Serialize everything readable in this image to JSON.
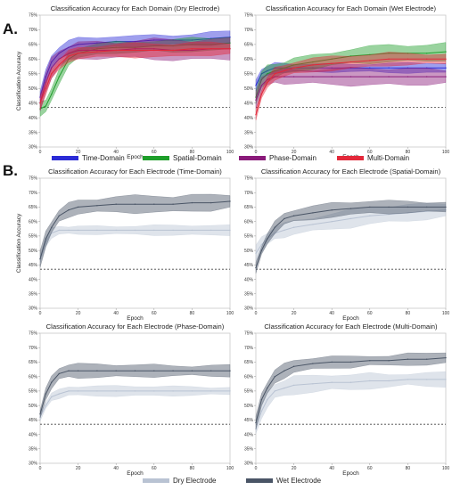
{
  "panel_labels": [
    "A.",
    "B."
  ],
  "colors": {
    "time": "#2b2bd6",
    "spatial": "#1e9e2a",
    "phase": "#8a1a7a",
    "multi": "#e3283a",
    "dry": "#b9c3d3",
    "wet": "#4a5566"
  },
  "legendA": [
    {
      "label": "Time-Domain",
      "color": "#2b2bd6"
    },
    {
      "label": "Spatial-Domain",
      "color": "#1e9e2a"
    },
    {
      "label": "Phase-Domain",
      "color": "#8a1a7a"
    },
    {
      "label": "Multi-Domain",
      "color": "#e3283a"
    }
  ],
  "legendB": [
    {
      "label": "Dry Electrode",
      "color": "#b9c3d3"
    },
    {
      "label": "Wet Electrode",
      "color": "#4a5566"
    }
  ],
  "chart_data": [
    {
      "type": "line",
      "title": "Classification Accuracy for Each Domain (Dry Electrode)",
      "xlabel": "Epoch",
      "ylabel": "Classification Accuracy",
      "xlim": [
        0,
        100
      ],
      "ylim": [
        30,
        75
      ],
      "xticks": [
        0,
        20,
        40,
        60,
        80,
        100
      ],
      "yticks": [
        "30%",
        "35%",
        "40%",
        "45%",
        "50%",
        "55%",
        "60%",
        "65%",
        "70%",
        "75%"
      ],
      "baseline": 43.5,
      "grid": false,
      "series": [
        {
          "name": "Time-Domain",
          "color": "#2b2bd6",
          "x": [
            0,
            3,
            6,
            10,
            15,
            20,
            30,
            40,
            50,
            60,
            70,
            80,
            90,
            100
          ],
          "y": [
            47,
            54,
            59,
            62,
            64,
            65,
            65.5,
            66,
            66,
            66.5,
            66.5,
            66.5,
            67,
            67.5
          ],
          "spread": 2
        },
        {
          "name": "Spatial-Domain",
          "color": "#1e9e2a",
          "x": [
            0,
            3,
            6,
            10,
            15,
            20,
            30,
            40,
            50,
            60,
            70,
            80,
            90,
            100
          ],
          "y": [
            43,
            44,
            48,
            54,
            60,
            62,
            63.5,
            64,
            64,
            64.5,
            64.5,
            65,
            65,
            65.5
          ],
          "spread": 2
        },
        {
          "name": "Phase-Domain",
          "color": "#8a1a7a",
          "x": [
            0,
            3,
            6,
            10,
            15,
            20,
            30,
            40,
            50,
            60,
            70,
            80,
            90,
            100
          ],
          "y": [
            45,
            52,
            57,
            60,
            62,
            63,
            63,
            63,
            63.5,
            63.5,
            63,
            63,
            63.5,
            63.5
          ],
          "spread": 3
        },
        {
          "name": "Multi-Domain",
          "color": "#e3283a",
          "x": [
            0,
            3,
            6,
            10,
            15,
            20,
            30,
            40,
            50,
            60,
            70,
            80,
            90,
            100
          ],
          "y": [
            45,
            50,
            55,
            58,
            61,
            62,
            62.5,
            63,
            63,
            63,
            63,
            63.5,
            63.5,
            63.5
          ],
          "spread": 2
        }
      ]
    },
    {
      "type": "line",
      "title": "Classification Accuracy for Each Domain (Wet Electrode)",
      "xlabel": "Epoch",
      "ylabel": "",
      "xlim": [
        0,
        100
      ],
      "ylim": [
        30,
        75
      ],
      "xticks": [
        0,
        20,
        40,
        60,
        80,
        100
      ],
      "yticks": [
        "30%",
        "35%",
        "40%",
        "45%",
        "50%",
        "55%",
        "60%",
        "65%",
        "70%",
        "75%"
      ],
      "baseline": 43.5,
      "grid": false,
      "series": [
        {
          "name": "Time-Domain",
          "color": "#2b2bd6",
          "x": [
            0,
            3,
            6,
            10,
            15,
            20,
            30,
            40,
            50,
            60,
            70,
            80,
            90,
            100
          ],
          "y": [
            51,
            55,
            56,
            57,
            57,
            57,
            57,
            57,
            57,
            57,
            57,
            57,
            57,
            57
          ],
          "spread": 1.5
        },
        {
          "name": "Spatial-Domain",
          "color": "#1e9e2a",
          "x": [
            0,
            3,
            6,
            10,
            15,
            20,
            30,
            40,
            50,
            60,
            70,
            80,
            90,
            100
          ],
          "y": [
            47,
            53,
            55,
            56,
            57,
            58,
            59,
            60,
            61,
            61.5,
            62,
            62,
            62,
            62.5
          ],
          "spread": 2.5
        },
        {
          "name": "Phase-Domain",
          "color": "#8a1a7a",
          "x": [
            0,
            3,
            6,
            10,
            15,
            20,
            30,
            40,
            50,
            60,
            70,
            80,
            90,
            100
          ],
          "y": [
            46,
            51,
            53,
            54,
            54,
            54,
            54,
            54,
            54,
            54,
            54,
            54,
            54,
            54
          ],
          "spread": 2.5
        },
        {
          "name": "Multi-Domain",
          "color": "#e3283a",
          "x": [
            0,
            3,
            6,
            10,
            15,
            20,
            30,
            40,
            50,
            60,
            70,
            80,
            90,
            100
          ],
          "y": [
            41,
            48,
            52,
            55,
            56,
            57,
            58,
            58.5,
            59,
            59.5,
            60,
            60,
            60,
            60
          ],
          "spread": 2
        }
      ]
    },
    {
      "type": "line",
      "title": "Classification Accuracy for Each Electrode (Time-Domain)",
      "xlabel": "Epoch",
      "ylabel": "Classification Accuracy",
      "xlim": [
        0,
        100
      ],
      "ylim": [
        30,
        75
      ],
      "xticks": [
        0,
        20,
        40,
        60,
        80,
        100
      ],
      "yticks": [
        "30%",
        "35%",
        "40%",
        "45%",
        "50%",
        "55%",
        "60%",
        "65%",
        "70%",
        "75%"
      ],
      "baseline": 43.5,
      "grid": false,
      "series": [
        {
          "name": "Dry Electrode",
          "color": "#b9c3d3",
          "x": [
            0,
            3,
            6,
            10,
            15,
            20,
            30,
            40,
            50,
            60,
            70,
            80,
            90,
            100
          ],
          "y": [
            47,
            53,
            56,
            57,
            57,
            57,
            57,
            57,
            57,
            57,
            57,
            57,
            57,
            57
          ],
          "spread": 1.5
        },
        {
          "name": "Wet Electrode",
          "color": "#4a5566",
          "x": [
            0,
            3,
            6,
            10,
            15,
            20,
            30,
            40,
            50,
            60,
            70,
            80,
            90,
            100
          ],
          "y": [
            47,
            54,
            58,
            62,
            64,
            65,
            65.5,
            66,
            66,
            66,
            66,
            66.5,
            66.5,
            67
          ],
          "spread": 2.5
        }
      ]
    },
    {
      "type": "line",
      "title": "Classification Accuracy for Each Electrode (Spatial-Domain)",
      "xlabel": "Epoch",
      "ylabel": "",
      "xlim": [
        0,
        100
      ],
      "ylim": [
        30,
        75
      ],
      "xticks": [
        0,
        20,
        40,
        60,
        80,
        100
      ],
      "yticks": [
        "30%",
        "35%",
        "40%",
        "45%",
        "50%",
        "55%",
        "60%",
        "65%",
        "70%",
        "75%"
      ],
      "baseline": 43.5,
      "grid": false,
      "series": [
        {
          "name": "Dry Electrode",
          "color": "#b9c3d3",
          "x": [
            0,
            3,
            6,
            10,
            15,
            20,
            30,
            40,
            50,
            60,
            70,
            80,
            90,
            100
          ],
          "y": [
            49,
            52,
            54,
            56,
            57,
            58,
            59,
            60,
            61,
            62,
            62.5,
            63,
            63.5,
            64
          ],
          "spread": 2.5
        },
        {
          "name": "Wet Electrode",
          "color": "#4a5566",
          "x": [
            0,
            3,
            6,
            10,
            15,
            20,
            30,
            40,
            50,
            60,
            70,
            80,
            90,
            100
          ],
          "y": [
            44,
            50,
            54,
            58,
            61,
            62,
            63,
            64,
            64.5,
            65,
            65,
            65,
            65,
            65
          ],
          "spread": 2
        }
      ]
    },
    {
      "type": "line",
      "title": "Classification Accuracy for Each Electrode (Phase-Domain)",
      "xlabel": "Epoch",
      "ylabel": "",
      "xlim": [
        0,
        100
      ],
      "ylim": [
        30,
        75
      ],
      "xticks": [
        0,
        20,
        40,
        60,
        80,
        100
      ],
      "yticks": [
        "30%",
        "35%",
        "40%",
        "45%",
        "50%",
        "55%",
        "60%",
        "65%",
        "70%",
        "75%"
      ],
      "baseline": 43.5,
      "grid": false,
      "series": [
        {
          "name": "Dry Electrode",
          "color": "#b9c3d3",
          "x": [
            0,
            3,
            6,
            10,
            15,
            20,
            30,
            40,
            50,
            60,
            70,
            80,
            90,
            100
          ],
          "y": [
            46,
            50,
            53,
            54,
            55,
            55,
            55,
            55,
            55,
            55,
            55,
            55,
            55,
            55
          ],
          "spread": 1.5
        },
        {
          "name": "Wet Electrode",
          "color": "#4a5566",
          "x": [
            0,
            3,
            6,
            10,
            15,
            20,
            30,
            40,
            50,
            60,
            70,
            80,
            90,
            100
          ],
          "y": [
            47,
            54,
            58,
            61,
            62,
            62,
            62,
            62,
            62,
            62,
            62,
            62,
            62,
            62
          ],
          "spread": 2
        }
      ]
    },
    {
      "type": "line",
      "title": "Classification Accuracy for Each Electrode (Multi-Domain)",
      "xlabel": "Epoch",
      "ylabel": "",
      "xlim": [
        0,
        100
      ],
      "ylim": [
        30,
        75
      ],
      "xticks": [
        0,
        20,
        40,
        60,
        80,
        100
      ],
      "yticks": [
        "30%",
        "35%",
        "40%",
        "45%",
        "50%",
        "55%",
        "60%",
        "65%",
        "70%",
        "75%"
      ],
      "baseline": 43.5,
      "grid": false,
      "series": [
        {
          "name": "Dry Electrode",
          "color": "#b9c3d3",
          "x": [
            0,
            3,
            6,
            10,
            15,
            20,
            30,
            40,
            50,
            60,
            70,
            80,
            90,
            100
          ],
          "y": [
            42,
            48,
            52,
            55,
            56,
            57,
            57.5,
            58,
            58,
            58.5,
            58.5,
            59,
            59,
            59
          ],
          "spread": 2.5
        },
        {
          "name": "Wet Electrode",
          "color": "#4a5566",
          "x": [
            0,
            3,
            6,
            10,
            15,
            20,
            30,
            40,
            50,
            60,
            70,
            80,
            90,
            100
          ],
          "y": [
            44,
            52,
            56,
            60,
            62,
            63.5,
            64.5,
            65,
            65,
            65.5,
            65.5,
            66,
            66,
            66.5
          ],
          "spread": 2
        }
      ]
    }
  ]
}
